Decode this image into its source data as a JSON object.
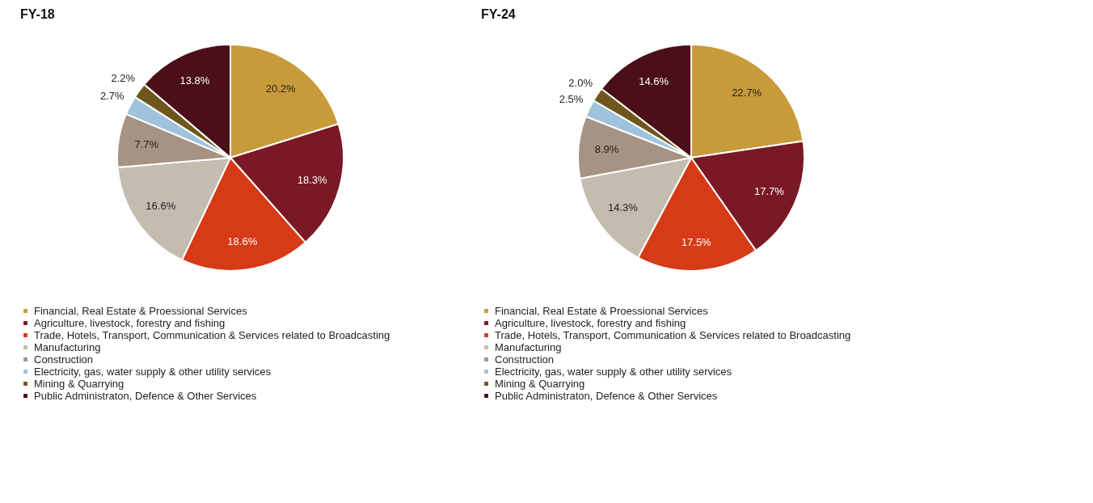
{
  "chart_data": [
    {
      "type": "pie",
      "title": "FY-18",
      "categories": [
        "Financial, Real Estate & Proessional Services",
        "Agriculture, livestock, forestry and fishing",
        "Trade, Hotels, Transport, Communication & Services related to Broadcasting",
        "Manufacturing",
        "Construction",
        "Electricity, gas, water supply & other utility services",
        "Mining & Quarrying",
        "Public Administraton, Defence & Other Services"
      ],
      "values": [
        20.2,
        18.3,
        18.6,
        16.6,
        7.7,
        2.7,
        2.2,
        13.8
      ],
      "value_labels": [
        "20.2%",
        "18.3%",
        "18.6%",
        "16.6%",
        "7.7%",
        "2.7%",
        "2.2%",
        "13.8%"
      ],
      "colors": [
        "#c99a3a",
        "#7a1826",
        "#d63a16",
        "#c5bcb0",
        "#a69383",
        "#9fc3dd",
        "#6e561c",
        "#4a0f18"
      ],
      "legend": "bottom"
    },
    {
      "type": "pie",
      "title": "FY-24",
      "categories": [
        "Financial, Real Estate & Proessional Services",
        "Agriculture, livestock, forestry and fishing",
        "Trade, Hotels, Transport, Communication & Services related to Broadcasting",
        "Manufacturing",
        "Construction",
        "Electricity, gas, water supply & other utility services",
        "Mining & Quarrying",
        "Public Administraton, Defence & Other Services"
      ],
      "values": [
        22.7,
        17.7,
        17.5,
        14.3,
        8.9,
        2.5,
        2.0,
        14.6
      ],
      "value_labels": [
        "22.7%",
        "17.7%",
        "17.5%",
        "14.3%",
        "8.9%",
        "2.5%",
        "2.0%",
        "14.6%"
      ],
      "colors": [
        "#c99a3a",
        "#7a1826",
        "#d63a16",
        "#c5bcb0",
        "#a69383",
        "#9fc3dd",
        "#6e561c",
        "#4a0f18"
      ],
      "legend": "bottom"
    }
  ]
}
